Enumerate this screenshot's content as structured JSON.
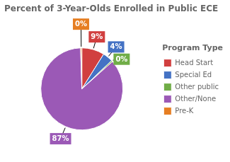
{
  "chart_data": {
    "type": "pie",
    "title": "Percent of 3-Year-Olds Enrolled in Public ECE",
    "categories": [
      "Head Start",
      "Special Ed",
      "Other public",
      "Other/None",
      "Pre-K"
    ],
    "values": [
      9,
      4,
      0.5,
      87,
      0.5
    ],
    "value_labels": [
      "9%",
      "4%",
      "0%",
      "87%",
      "0%"
    ],
    "colors": [
      "#d13f3f",
      "#4472c4",
      "#70ad47",
      "#9b59b6",
      "#e67e22"
    ],
    "legend": "right",
    "legend_title": "Program Type",
    "data_labels": true
  }
}
